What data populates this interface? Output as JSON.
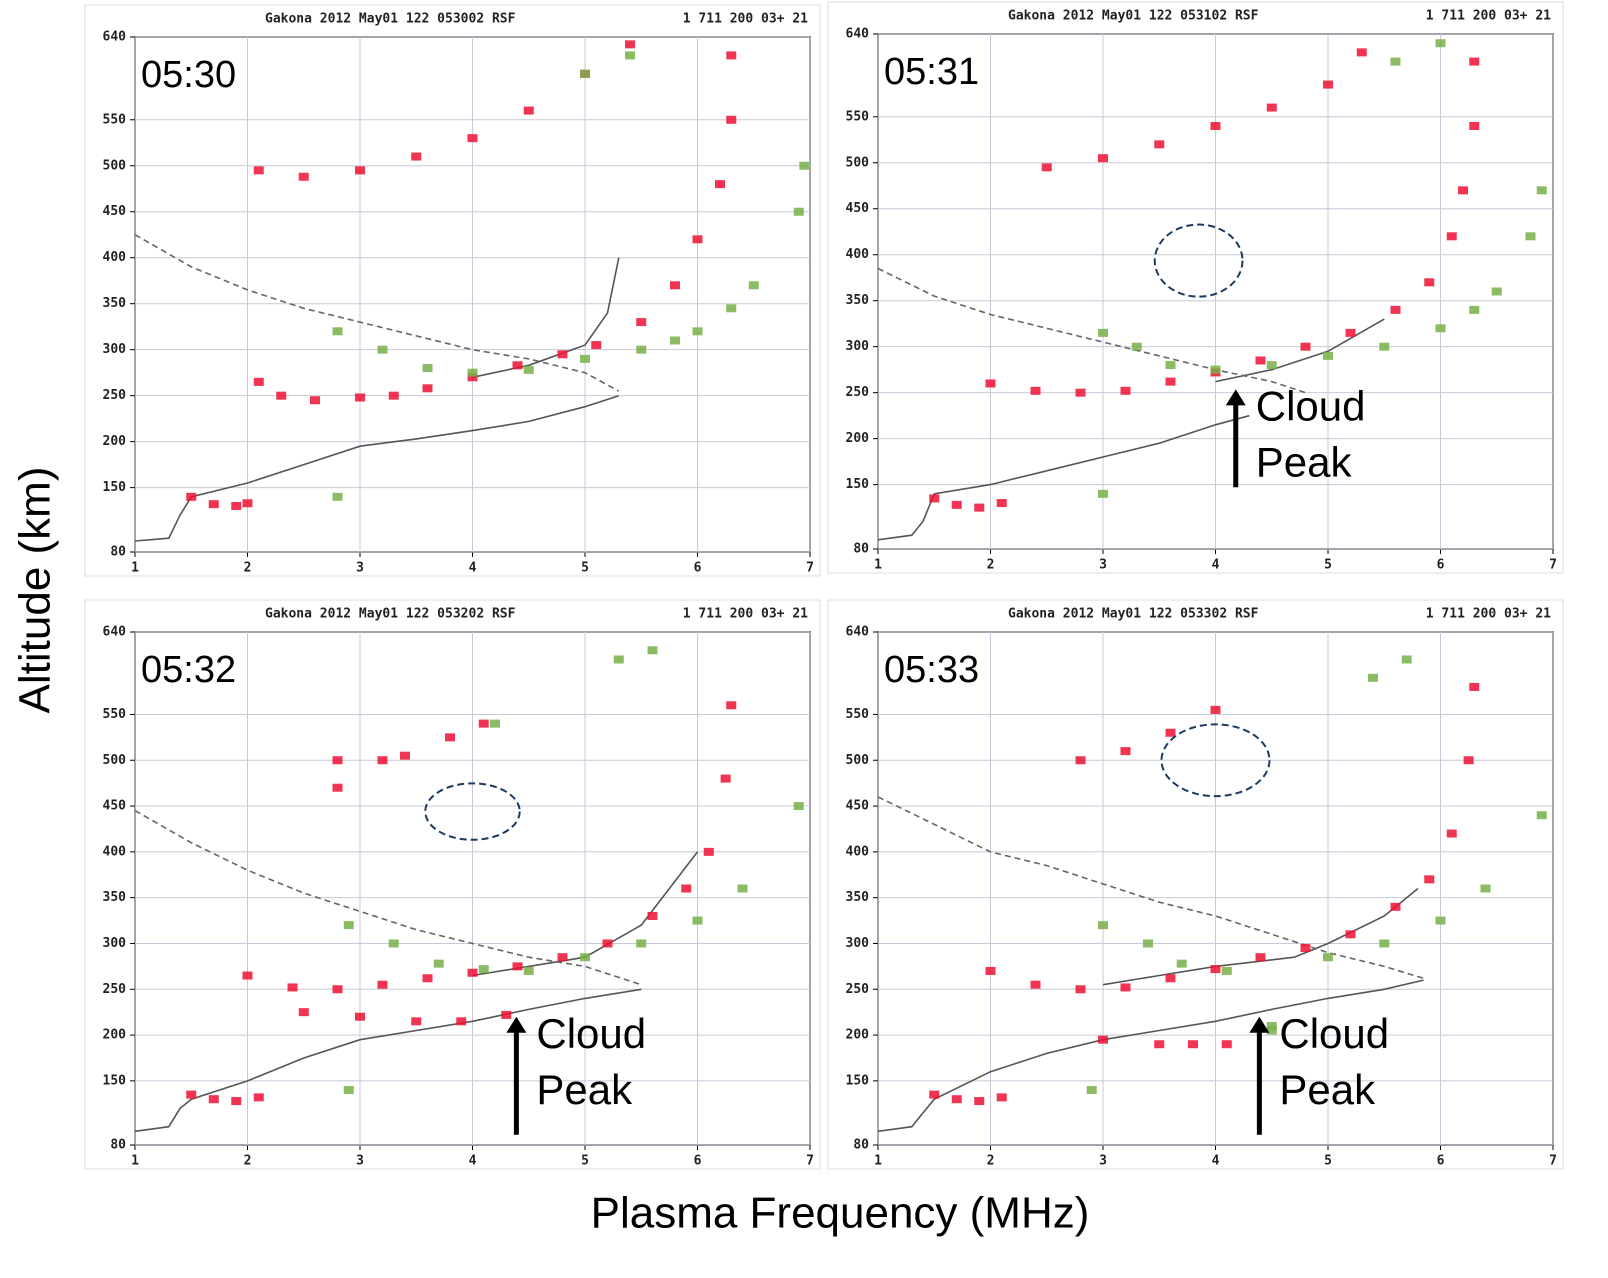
{
  "figure": {
    "ylabel": "Altitude (km)",
    "xlabel": "Plasma Frequency (MHz)"
  },
  "chart_data": [
    {
      "type": "line",
      "header": "Gakona 2012 May01 122 053002 RSF",
      "header_right": "1 711 200 03+ 21",
      "time": "05:30",
      "xlim": [
        1,
        7
      ],
      "ylim": [
        80,
        640
      ],
      "xticks": [
        1,
        2,
        3,
        4,
        5,
        6,
        7
      ],
      "yticks": [
        80,
        150,
        200,
        250,
        300,
        350,
        400,
        450,
        500,
        550,
        640
      ],
      "grid": true,
      "series": [
        {
          "mode": "line",
          "color": "#555555",
          "x": [
            1,
            1.3,
            1.4,
            1.5,
            2,
            2.5,
            3,
            3.5,
            4,
            4.5,
            5,
            5.3,
            3.5,
            4,
            4.5,
            5,
            5.2,
            5.3
          ],
          "values": [
            92,
            95,
            120,
            140,
            155,
            175,
            195,
            203,
            212,
            222,
            238,
            250,
            null,
            270,
            283,
            305,
            340,
            400
          ]
        },
        {
          "mode": "dashed",
          "color": "#666666",
          "x": [
            1,
            1.5,
            2,
            2.5,
            3,
            3.5,
            4,
            4.5,
            5,
            5.3
          ],
          "values": [
            425,
            390,
            365,
            345,
            330,
            315,
            300,
            290,
            275,
            255
          ]
        },
        {
          "mode": "points",
          "color": "#ee1133",
          "x": [
            1.5,
            1.7,
            1.9,
            2.0,
            2.1,
            2.3,
            2.6,
            3.0,
            3.3,
            3.6,
            4.0,
            4.4,
            4.8,
            5.1,
            5.5,
            5.8,
            6.0,
            6.2,
            6.3,
            6.3,
            2.1,
            2.5,
            3.0,
            3.5,
            4.0,
            4.5,
            5.0,
            5.4
          ],
          "values": [
            140,
            132,
            130,
            133,
            265,
            250,
            245,
            248,
            250,
            258,
            270,
            283,
            295,
            305,
            330,
            370,
            420,
            480,
            550,
            620,
            495,
            488,
            495,
            510,
            530,
            560,
            600,
            632
          ]
        },
        {
          "mode": "points",
          "color": "#77b049",
          "x": [
            2.8,
            3.2,
            3.6,
            4.0,
            4.5,
            5.0,
            5.5,
            5.8,
            6.0,
            6.3,
            6.5,
            5.0,
            5.4,
            6.9,
            6.95,
            2.8
          ],
          "values": [
            320,
            300,
            280,
            275,
            278,
            290,
            300,
            310,
            320,
            345,
            370,
            600,
            620,
            450,
            500,
            140
          ]
        }
      ]
    },
    {
      "type": "line",
      "header": "Gakona 2012 May01 122 053102 RSF",
      "header_right": "1 711 200 03+ 21",
      "time": "05:31",
      "xlim": [
        1,
        7
      ],
      "ylim": [
        80,
        640
      ],
      "xticks": [
        1,
        2,
        3,
        4,
        5,
        6,
        7
      ],
      "yticks": [
        80,
        150,
        200,
        250,
        300,
        350,
        400,
        450,
        500,
        550,
        640
      ],
      "grid": true,
      "series": [
        {
          "mode": "line",
          "color": "#555555",
          "x": [
            1,
            1.3,
            1.4,
            1.5,
            2,
            2.5,
            3,
            3.5,
            4,
            4.3,
            3.5,
            4,
            4.5,
            5,
            5.5
          ],
          "values": [
            90,
            95,
            110,
            140,
            150,
            165,
            180,
            195,
            215,
            225,
            null,
            262,
            275,
            295,
            330
          ]
        },
        {
          "mode": "dashed",
          "color": "#666666",
          "x": [
            1,
            1.5,
            2,
            2.5,
            3,
            3.5,
            4,
            4.5,
            4.8
          ],
          "values": [
            385,
            355,
            335,
            320,
            305,
            290,
            275,
            262,
            250
          ]
        },
        {
          "mode": "points",
          "color": "#ee1133",
          "x": [
            1.5,
            1.7,
            1.9,
            2.1,
            2.0,
            2.4,
            2.8,
            3.2,
            3.6,
            4.0,
            4.4,
            4.8,
            5.2,
            5.6,
            5.9,
            6.1,
            6.2,
            6.3,
            6.3,
            2.5,
            3.0,
            3.5,
            4.0,
            4.5,
            5.0,
            5.3
          ],
          "values": [
            135,
            128,
            125,
            130,
            260,
            252,
            250,
            252,
            262,
            272,
            285,
            300,
            315,
            340,
            370,
            420,
            470,
            540,
            610,
            495,
            505,
            520,
            540,
            560,
            585,
            620
          ]
        },
        {
          "mode": "points",
          "color": "#77b049",
          "x": [
            3.0,
            3.3,
            3.6,
            4.0,
            4.5,
            5.0,
            5.5,
            6.0,
            6.3,
            6.5,
            5.6,
            6.0,
            6.8,
            6.9,
            3.0
          ],
          "values": [
            315,
            300,
            280,
            275,
            280,
            290,
            300,
            320,
            340,
            360,
            610,
            630,
            420,
            470,
            140
          ]
        }
      ],
      "annotation": [
        "Cloud",
        "Peak"
      ]
    },
    {
      "type": "line",
      "header": "Gakona 2012 May01 122 053202 RSF",
      "header_right": "1 711 200 03+ 21",
      "time": "05:32",
      "xlim": [
        1,
        7
      ],
      "ylim": [
        80,
        640
      ],
      "xticks": [
        1,
        2,
        3,
        4,
        5,
        6,
        7
      ],
      "yticks": [
        80,
        150,
        200,
        250,
        300,
        350,
        400,
        450,
        500,
        550,
        640
      ],
      "grid": true,
      "series": [
        {
          "mode": "line",
          "color": "#555555",
          "x": [
            1,
            1.3,
            1.4,
            1.5,
            2,
            2.5,
            3,
            3.5,
            4,
            4.5,
            5,
            5.5,
            3,
            4,
            4.5,
            5,
            5.5,
            6
          ],
          "values": [
            95,
            100,
            120,
            130,
            150,
            175,
            195,
            205,
            215,
            228,
            240,
            250,
            null,
            265,
            275,
            285,
            320,
            400
          ]
        },
        {
          "mode": "dashed",
          "color": "#666666",
          "x": [
            1,
            1.5,
            2,
            2.5,
            3,
            3.5,
            4,
            4.5,
            5,
            5.5
          ],
          "values": [
            445,
            410,
            380,
            355,
            335,
            315,
            300,
            285,
            275,
            255
          ]
        },
        {
          "mode": "points",
          "color": "#ee1133",
          "x": [
            1.5,
            1.7,
            1.9,
            2.1,
            2.0,
            2.4,
            2.8,
            3.2,
            3.6,
            4.0,
            4.4,
            4.8,
            5.2,
            5.6,
            5.9,
            6.1,
            6.25,
            6.3,
            2.5,
            3.0,
            3.5,
            3.9,
            4.3,
            2.8,
            3.4,
            4.1,
            2.8,
            3.2,
            3.8
          ],
          "values": [
            135,
            130,
            128,
            132,
            265,
            252,
            250,
            255,
            262,
            268,
            275,
            285,
            300,
            330,
            360,
            400,
            480,
            560,
            225,
            220,
            215,
            215,
            222,
            500,
            505,
            540,
            470,
            500,
            525
          ]
        },
        {
          "mode": "points",
          "color": "#77b049",
          "x": [
            2.9,
            3.3,
            3.7,
            4.1,
            4.5,
            5.0,
            5.5,
            6.0,
            6.4,
            5.3,
            5.6,
            6.9,
            2.9,
            4.2
          ],
          "values": [
            320,
            300,
            278,
            272,
            270,
            285,
            300,
            325,
            360,
            610,
            620,
            450,
            140,
            540
          ]
        }
      ],
      "annotation": [
        "Cloud",
        "Peak"
      ]
    },
    {
      "type": "line",
      "header": "Gakona 2012 May01 122 053302 RSF",
      "header_right": "1 711 200 03+ 21",
      "time": "05:33",
      "xlim": [
        1,
        7
      ],
      "ylim": [
        80,
        640
      ],
      "xticks": [
        1,
        2,
        3,
        4,
        5,
        6,
        7
      ],
      "yticks": [
        80,
        150,
        200,
        250,
        300,
        350,
        400,
        450,
        500,
        550,
        640
      ],
      "grid": true,
      "series": [
        {
          "mode": "line",
          "color": "#555555",
          "x": [
            1,
            1.3,
            1.4,
            1.5,
            2,
            2.5,
            3,
            3.5,
            4,
            4.5,
            5,
            5.5,
            5.85,
            2.5,
            3,
            3.5,
            4,
            4.7,
            5,
            5.5,
            5.8
          ],
          "values": [
            95,
            100,
            115,
            130,
            160,
            180,
            195,
            205,
            215,
            228,
            240,
            250,
            260,
            null,
            255,
            265,
            275,
            285,
            300,
            330,
            360
          ]
        },
        {
          "mode": "dashed",
          "color": "#666666",
          "x": [
            1,
            1.5,
            2,
            2.5,
            3,
            3.5,
            4,
            4.5,
            5,
            5.5,
            5.85
          ],
          "values": [
            460,
            430,
            400,
            385,
            365,
            345,
            330,
            310,
            290,
            275,
            262
          ]
        },
        {
          "mode": "points",
          "color": "#ee1133",
          "x": [
            1.5,
            1.7,
            1.9,
            2.1,
            2.0,
            2.4,
            2.8,
            3.2,
            3.6,
            4.0,
            4.4,
            4.8,
            5.2,
            5.6,
            5.9,
            6.1,
            6.25,
            6.3,
            3.0,
            3.5,
            3.8,
            4.1,
            2.8,
            3.2,
            3.6,
            4.0
          ],
          "values": [
            135,
            130,
            128,
            132,
            270,
            255,
            250,
            252,
            262,
            272,
            285,
            295,
            310,
            340,
            370,
            420,
            500,
            580,
            195,
            190,
            190,
            190,
            500,
            510,
            530,
            555
          ]
        },
        {
          "mode": "points",
          "color": "#77b049",
          "x": [
            3.0,
            3.4,
            3.7,
            4.1,
            4.5,
            5.0,
            5.5,
            6.0,
            6.4,
            5.4,
            5.7,
            6.9,
            4.5,
            2.9
          ],
          "values": [
            320,
            300,
            278,
            270,
            205,
            285,
            300,
            325,
            360,
            590,
            610,
            440,
            210,
            140
          ]
        }
      ],
      "annotation": [
        "Cloud",
        "Peak"
      ]
    }
  ]
}
